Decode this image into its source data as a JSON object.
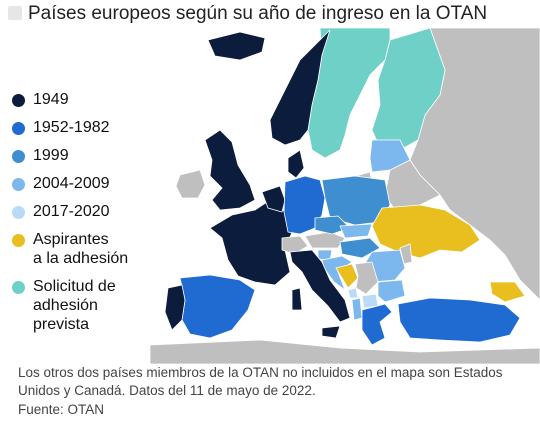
{
  "title": "Países europeos según su año de ingreso en la OTAN",
  "colors": {
    "1949": "#0b1c3d",
    "1952_1982": "#1f6bd1",
    "1999": "#3f8fd0",
    "2004_2009": "#7cb7ee",
    "2017_2020": "#b9dbf6",
    "aspirantes": "#e8bf1e",
    "solicitud": "#6fd0c8",
    "non_member": "#bfbfbf",
    "sea": "#ffffff"
  },
  "legend": [
    {
      "label": "1949",
      "color": "#0b1c3d"
    },
    {
      "label": "1952-1982",
      "color": "#1f6bd1"
    },
    {
      "label": "1999",
      "color": "#3f8fd0"
    },
    {
      "label": "2004-2009",
      "color": "#7cb7ee"
    },
    {
      "label": "2017-2020",
      "color": "#b9dbf6"
    },
    {
      "label": "Aspirantes\na la adhesión",
      "color": "#e8bf1e"
    },
    {
      "label": "Solicitud de\nadhesión\nprevista",
      "color": "#6fd0c8"
    }
  ],
  "footnote": "Los otros dos países miembros de la OTAN no incluidos en el mapa son Estados Unidos y Canadá. Datos del 11 de mayo de 2022.",
  "source": "Fuente: OTAN",
  "regions": [
    {
      "name": "Islandia",
      "group": "1949"
    },
    {
      "name": "Noruega",
      "group": "1949"
    },
    {
      "name": "Dinamarca",
      "group": "1949"
    },
    {
      "name": "Reino Unido",
      "group": "1949"
    },
    {
      "name": "Francia",
      "group": "1949"
    },
    {
      "name": "Benelux",
      "group": "1949"
    },
    {
      "name": "Italia",
      "group": "1949"
    },
    {
      "name": "Portugal",
      "group": "1949"
    },
    {
      "name": "España",
      "group": "1952_1982"
    },
    {
      "name": "Alemania",
      "group": "1952_1982"
    },
    {
      "name": "Grecia",
      "group": "1952_1982"
    },
    {
      "name": "Turquía",
      "group": "1952_1982"
    },
    {
      "name": "Polonia",
      "group": "1999"
    },
    {
      "name": "Chequia",
      "group": "1999"
    },
    {
      "name": "Hungría",
      "group": "1999"
    },
    {
      "name": "Bálticos",
      "group": "2004_2009"
    },
    {
      "name": "Eslovaquia",
      "group": "2004_2009"
    },
    {
      "name": "Rumanía",
      "group": "2004_2009"
    },
    {
      "name": "Bulgaria",
      "group": "2004_2009"
    },
    {
      "name": "Croacia",
      "group": "2004_2009"
    },
    {
      "name": "Eslovenia",
      "group": "2004_2009"
    },
    {
      "name": "Albania",
      "group": "2004_2009"
    },
    {
      "name": "Montenegro",
      "group": "2017_2020"
    },
    {
      "name": "Macedonia del Norte",
      "group": "2017_2020"
    },
    {
      "name": "Ucrania",
      "group": "aspirantes"
    },
    {
      "name": "Bosnia",
      "group": "aspirantes"
    },
    {
      "name": "Georgia",
      "group": "aspirantes"
    },
    {
      "name": "Finlandia",
      "group": "solicitud"
    },
    {
      "name": "Suecia",
      "group": "solicitud"
    },
    {
      "name": "Rusia",
      "group": "non_member"
    },
    {
      "name": "Bielorrusia",
      "group": "non_member"
    },
    {
      "name": "Suiza",
      "group": "non_member"
    },
    {
      "name": "Austria",
      "group": "non_member"
    },
    {
      "name": "Serbia",
      "group": "non_member"
    },
    {
      "name": "Irlanda",
      "group": "non_member"
    },
    {
      "name": "Moldavia",
      "group": "non_member"
    }
  ]
}
